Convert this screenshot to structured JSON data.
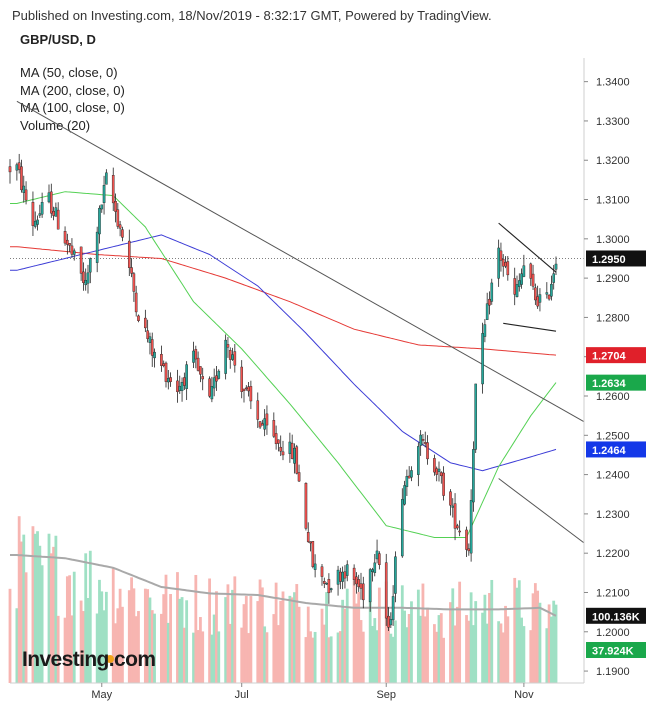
{
  "header": {
    "published_line": "Published on Investing.com, 18/Nov/2019 - 8:32:17 GMT, Powered by TradingView.",
    "symbol_line": "GBP/USD, D"
  },
  "legend": [
    "MA (50, close, 0)",
    "MA (200, close, 0)",
    "MA (100, close, 0)",
    "Volume (20)"
  ],
  "logo_text": "Investing.com",
  "colors": {
    "up": "#26a69a",
    "down": "#ef5350",
    "ma50": "#54d154",
    "ma100": "#3c3cd6",
    "ma200": "#e53935",
    "volume_up": "#9fe0c4",
    "volume_down": "#f7b5b1",
    "price_label_bg": "#111111",
    "ma200_label_bg": "#e0202a",
    "ma50_label_bg": "#1aa84b",
    "ma100_label_bg": "#1438e8"
  },
  "chart_data": {
    "type": "candlestick",
    "price_axis": {
      "range": [
        1.189,
        1.345
      ],
      "ticks": [
        "1.3400",
        "1.3300",
        "1.3200",
        "1.3100",
        "1.3000",
        "1.2900",
        "1.2800",
        "1.2700",
        "1.2600",
        "1.2500",
        "1.2400",
        "1.2300",
        "1.2200",
        "1.2100",
        "1.2000",
        "1.1900"
      ]
    },
    "time_axis": {
      "ticks": [
        "May",
        "Jul",
        "Sep",
        "Nov"
      ]
    },
    "ohlc_anchors": [
      [
        "2019-03-25",
        1.318
      ],
      [
        "2019-04-01",
        1.304
      ],
      [
        "2019-04-08",
        1.31
      ],
      [
        "2019-04-15",
        1.3
      ],
      [
        "2019-04-24",
        1.288
      ],
      [
        "2019-05-03",
        1.315
      ],
      [
        "2019-05-10",
        1.301
      ],
      [
        "2019-05-17",
        1.281
      ],
      [
        "2019-05-24",
        1.27
      ],
      [
        "2019-06-03",
        1.262
      ],
      [
        "2019-06-10",
        1.269
      ],
      [
        "2019-06-17",
        1.258
      ],
      [
        "2019-06-24",
        1.275
      ],
      [
        "2019-07-01",
        1.263
      ],
      [
        "2019-07-08",
        1.254
      ],
      [
        "2019-07-15",
        1.249
      ],
      [
        "2019-07-24",
        1.245
      ],
      [
        "2019-08-01",
        1.217
      ],
      [
        "2019-08-08",
        1.212
      ],
      [
        "2019-08-15",
        1.216
      ],
      [
        "2019-08-23",
        1.21
      ],
      [
        "2019-08-29",
        1.222
      ],
      [
        "2019-09-03",
        1.199
      ],
      [
        "2019-09-09",
        1.236
      ],
      [
        "2019-09-16",
        1.249
      ],
      [
        "2019-09-23",
        1.243
      ],
      [
        "2019-10-01",
        1.23
      ],
      [
        "2019-10-08",
        1.221
      ],
      [
        "2019-10-11",
        1.262
      ],
      [
        "2019-10-17",
        1.285
      ],
      [
        "2019-10-21",
        1.297
      ],
      [
        "2019-10-28",
        1.285
      ],
      [
        "2019-11-01",
        1.293
      ],
      [
        "2019-11-06",
        1.285
      ],
      [
        "2019-11-11",
        1.284
      ],
      [
        "2019-11-15",
        1.295
      ]
    ],
    "ma50": [
      [
        "2019-03-25",
        1.309
      ],
      [
        "2019-04-15",
        1.312
      ],
      [
        "2019-05-06",
        1.311
      ],
      [
        "2019-05-20",
        1.303
      ],
      [
        "2019-06-10",
        1.284
      ],
      [
        "2019-07-01",
        1.272
      ],
      [
        "2019-07-22",
        1.258
      ],
      [
        "2019-08-12",
        1.243
      ],
      [
        "2019-09-02",
        1.227
      ],
      [
        "2019-09-23",
        1.224
      ],
      [
        "2019-10-07",
        1.224
      ],
      [
        "2019-10-21",
        1.242
      ],
      [
        "2019-11-04",
        1.255
      ],
      [
        "2019-11-15",
        1.2634
      ]
    ],
    "ma100": [
      [
        "2019-03-25",
        1.292
      ],
      [
        "2019-04-15",
        1.295
      ],
      [
        "2019-05-06",
        1.298
      ],
      [
        "2019-05-27",
        1.301
      ],
      [
        "2019-06-17",
        1.296
      ],
      [
        "2019-07-08",
        1.288
      ],
      [
        "2019-07-29",
        1.276
      ],
      [
        "2019-08-19",
        1.263
      ],
      [
        "2019-09-09",
        1.251
      ],
      [
        "2019-09-30",
        1.243
      ],
      [
        "2019-10-14",
        1.241
      ],
      [
        "2019-11-01",
        1.244
      ],
      [
        "2019-11-15",
        1.2464
      ]
    ],
    "ma200": [
      [
        "2019-03-25",
        1.298
      ],
      [
        "2019-04-29",
        1.296
      ],
      [
        "2019-05-27",
        1.295
      ],
      [
        "2019-06-24",
        1.29
      ],
      [
        "2019-07-22",
        1.284
      ],
      [
        "2019-08-19",
        1.277
      ],
      [
        "2019-09-16",
        1.273
      ],
      [
        "2019-10-14",
        1.272
      ],
      [
        "2019-11-15",
        1.2704
      ]
    ],
    "volume_anchors": [
      [
        "2019-03-25",
        0.82
      ],
      [
        "2019-04-15",
        0.74
      ],
      [
        "2019-05-06",
        0.66
      ],
      [
        "2019-05-27",
        0.56
      ],
      [
        "2019-06-17",
        0.54
      ],
      [
        "2019-07-08",
        0.55
      ],
      [
        "2019-07-29",
        0.5
      ],
      [
        "2019-08-19",
        0.54
      ],
      [
        "2019-09-09",
        0.5
      ],
      [
        "2019-09-30",
        0.48
      ],
      [
        "2019-10-21",
        0.55
      ],
      [
        "2019-11-15",
        0.46
      ]
    ],
    "volume_ma_anchors": [
      [
        "2019-03-25",
        0.8
      ],
      [
        "2019-04-15",
        0.78
      ],
      [
        "2019-05-06",
        0.72
      ],
      [
        "2019-05-27",
        0.6
      ],
      [
        "2019-06-17",
        0.56
      ],
      [
        "2019-07-08",
        0.55
      ],
      [
        "2019-07-29",
        0.5
      ],
      [
        "2019-08-19",
        0.47
      ],
      [
        "2019-09-09",
        0.47
      ],
      [
        "2019-09-30",
        0.46
      ],
      [
        "2019-10-21",
        0.46
      ],
      [
        "2019-11-08",
        0.47
      ],
      [
        "2019-11-15",
        0.42
      ]
    ],
    "trendlines": [
      {
        "name": "long-downtrend",
        "from": [
          "2019-03-25",
          1.335
        ],
        "to": [
          "2019-11-15",
          1.2575
        ]
      },
      {
        "name": "lower-channel",
        "from": [
          "2019-10-21",
          1.239
        ],
        "to": [
          "2019-11-15",
          1.228
        ]
      },
      {
        "name": "flag-upper",
        "from": [
          "2019-10-21",
          1.304
        ],
        "to": [
          "2019-11-15",
          1.2915
        ]
      },
      {
        "name": "flag-lower",
        "from": [
          "2019-10-23",
          1.2785
        ],
        "to": [
          "2019-11-15",
          1.2765
        ]
      }
    ],
    "current_price_line": 1.295,
    "price_labels": [
      {
        "name": "last-price",
        "text": "1.2950",
        "value": 1.295,
        "color_key": "price_label_bg"
      },
      {
        "name": "ma200",
        "text": "1.2704",
        "value": 1.2704,
        "color_key": "ma200_label_bg"
      },
      {
        "name": "ma50",
        "text": "1.2634",
        "value": 1.2634,
        "color_key": "ma50_label_bg"
      },
      {
        "name": "ma100",
        "text": "1.2464",
        "value": 1.2464,
        "color_key": "ma100_label_bg"
      }
    ],
    "volume_labels": [
      {
        "name": "volume-ma",
        "text": "100.136K",
        "value": 100.136,
        "color_key": "price_label_bg"
      },
      {
        "name": "volume-last",
        "text": "37.924K",
        "value": 37.924,
        "color_key": "ma50_label_bg"
      }
    ]
  }
}
